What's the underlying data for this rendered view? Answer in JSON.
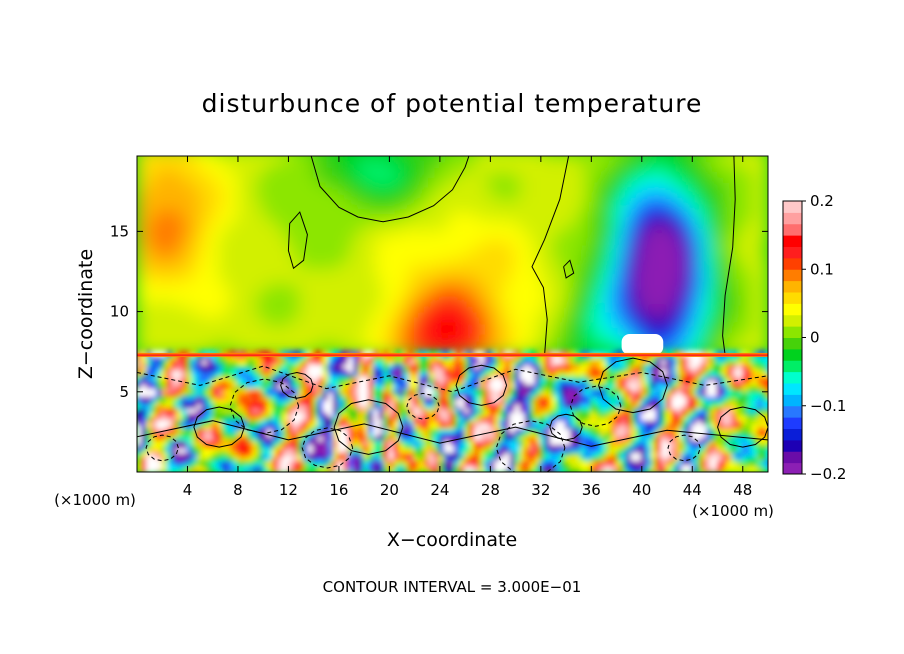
{
  "chart_data": {
    "type": "heatmap",
    "title": "disturbunce of potential temperature",
    "xlabel": "X−coordinate",
    "ylabel": "Z−coordinate",
    "x_unit_left": "(×1000 m)",
    "x_unit_right": "(×1000 m)",
    "footer": "CONTOUR INTERVAL = 3.000E−01",
    "xlim": [
      0,
      50
    ],
    "ylim": [
      0,
      19.7
    ],
    "x_ticks": [
      4,
      8,
      12,
      16,
      20,
      24,
      28,
      32,
      36,
      40,
      44,
      48
    ],
    "x_tick_labels": [
      "4",
      "8",
      "12",
      "16",
      "20",
      "24",
      "28",
      "32",
      "36",
      "40",
      "44",
      "48"
    ],
    "y_ticks": [
      5,
      10,
      15
    ],
    "y_tick_labels": [
      "5",
      "10",
      "15"
    ],
    "colorbar": {
      "range": [
        -0.2,
        0.2
      ],
      "tick_values": [
        0.2,
        0.1,
        0,
        -0.1,
        -0.2
      ],
      "tick_labels": [
        "0.2",
        "0.1",
        "0",
        "−0.1",
        "−0.2"
      ],
      "colors": [
        "#8c1fb4",
        "#6a0ca8",
        "#1d00b4",
        "#0a1ed8",
        "#1e3cff",
        "#2878ff",
        "#00b4ff",
        "#00e6ff",
        "#00ffcc",
        "#00ee66",
        "#00d21e",
        "#46d20a",
        "#8ce600",
        "#d2f000",
        "#ffff00",
        "#ffdc00",
        "#ffb400",
        "#ff7d00",
        "#ff4000",
        "#ff1e1e",
        "#ff0000",
        "#ff6e6e",
        "#ffa0a0",
        "#ffc8c8"
      ]
    },
    "description_regions": [
      {
        "x": [
          0,
          50
        ],
        "z": [
          7.3,
          19.7
        ],
        "note": "upper layer, mostly -0.03 to 0.1"
      },
      {
        "x": [
          0,
          50
        ],
        "z": [
          0,
          7.3
        ],
        "note": "lower layer, strong mixed anomalies"
      }
    ],
    "features": [
      {
        "x": 41.5,
        "z": 12.5,
        "value": -0.2
      },
      {
        "x": 24.5,
        "z": 9.0,
        "value": 0.13
      },
      {
        "x": 2.5,
        "z": 17.5,
        "value": 0.09
      },
      {
        "x": 19.0,
        "z": 18.5,
        "value": -0.04
      }
    ]
  }
}
